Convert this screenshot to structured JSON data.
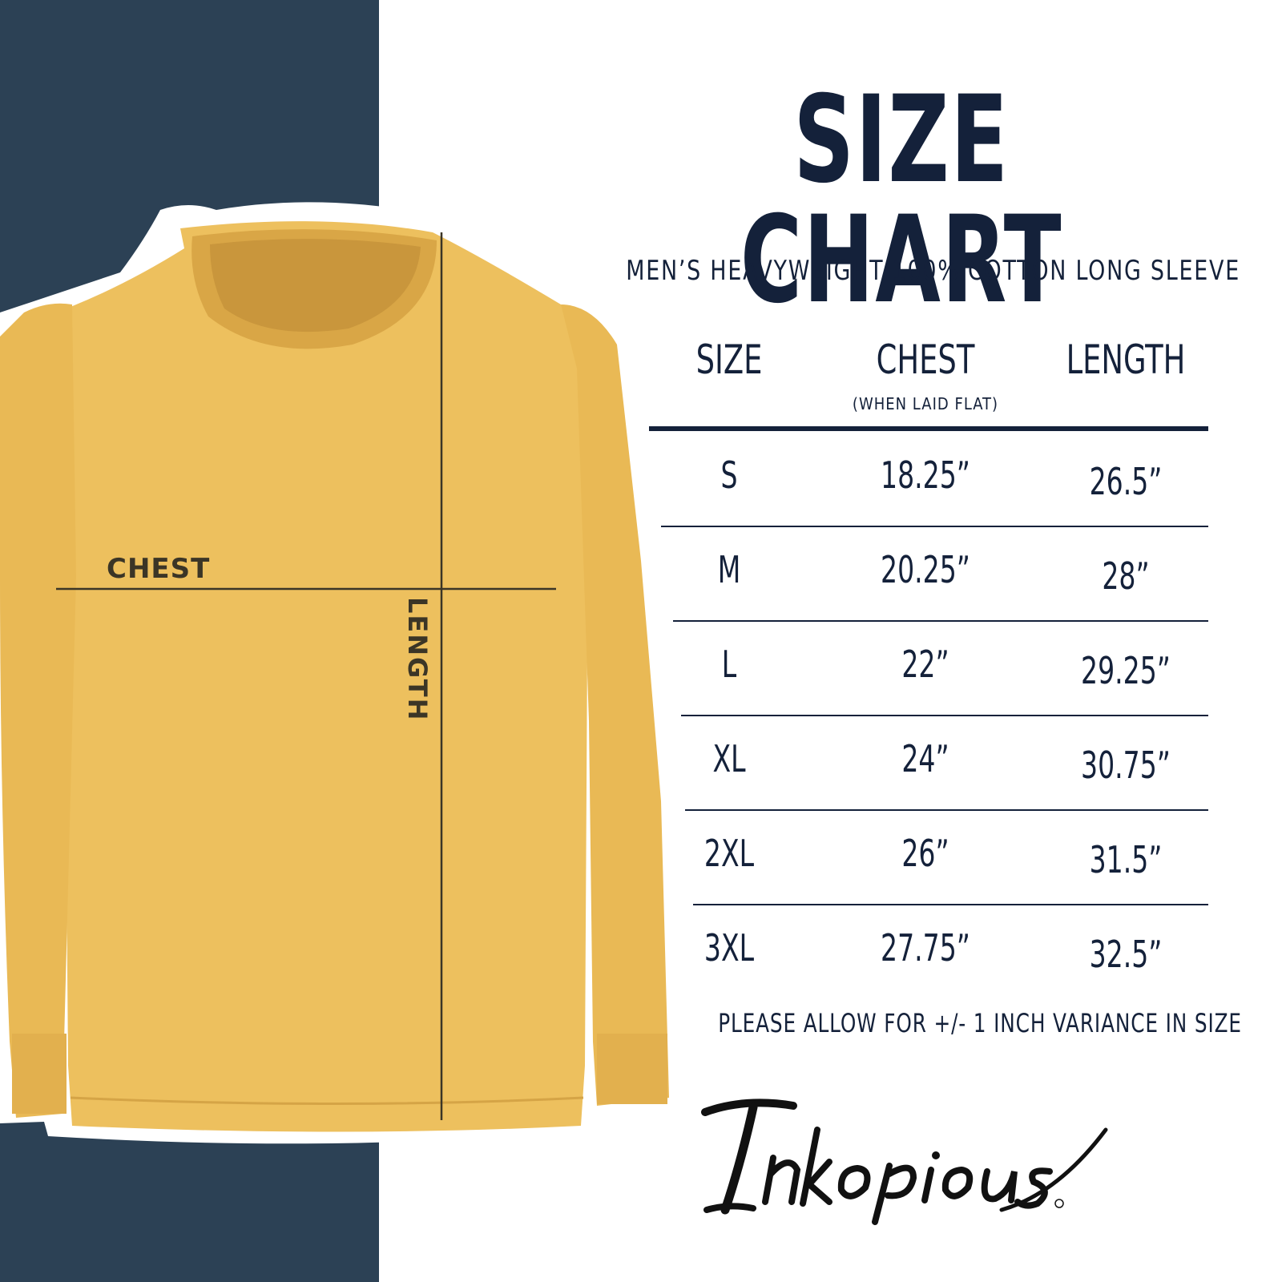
{
  "brand": {
    "logo_text": "Inkopious",
    "colors": {
      "navy": "#2c4155",
      "ink": "#14213a",
      "shirt": "#edc05e"
    }
  },
  "header": {
    "title": "SIZE CHART",
    "subtitle": "MEN’S HEAVYWEIGHT 100% COTTON LONG SLEEVE"
  },
  "diagram": {
    "chest_label": "CHEST",
    "length_label": "LENGTH"
  },
  "table": {
    "columns": {
      "size": "SIZE",
      "chest": "CHEST",
      "chest_note": "(WHEN LAID FLAT)",
      "length": "LENGTH"
    },
    "rows": [
      {
        "size": "S",
        "chest": "18.25”",
        "length": "26.5”"
      },
      {
        "size": "M",
        "chest": "20.25”",
        "length": "28”"
      },
      {
        "size": "L",
        "chest": "22”",
        "length": "29.25”"
      },
      {
        "size": "XL",
        "chest": "24”",
        "length": "30.75”"
      },
      {
        "size": "2XL",
        "chest": "26”",
        "length": "31.5”"
      },
      {
        "size": "3XL",
        "chest": "27.75”",
        "length": "32.5”"
      }
    ]
  },
  "footer": {
    "note": "PLEASE ALLOW FOR +/- 1 INCH VARIANCE IN SIZE"
  }
}
